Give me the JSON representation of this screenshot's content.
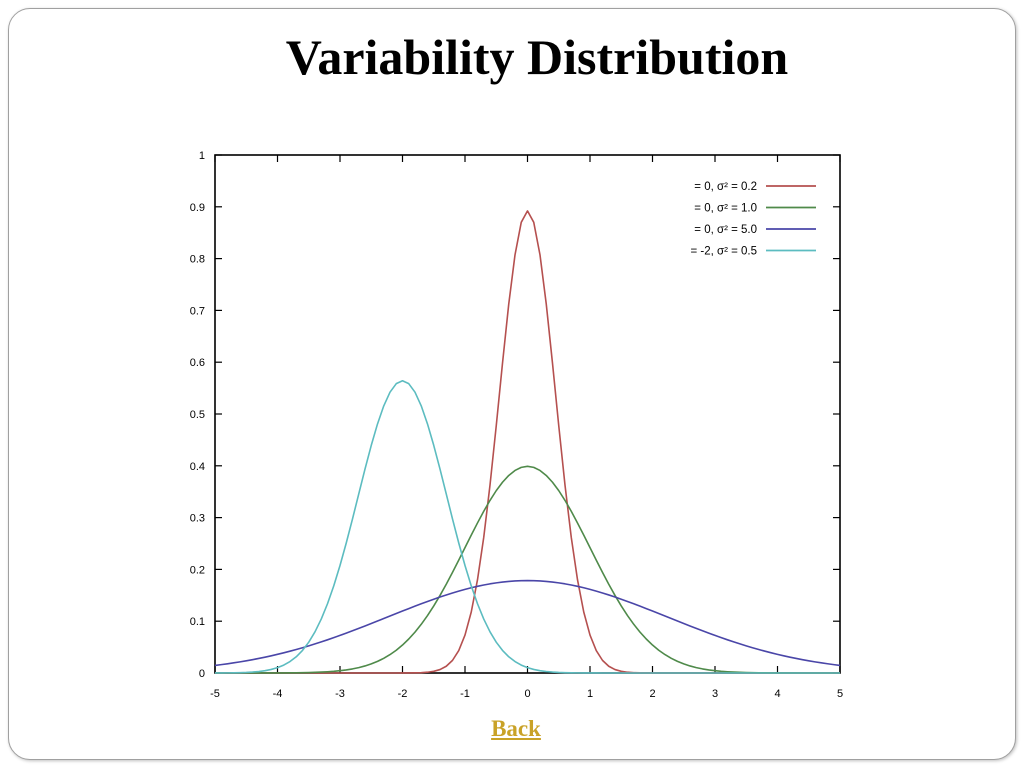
{
  "slide": {
    "title": "Variability Distribution",
    "back_label": "Back"
  },
  "chart_data": {
    "type": "line",
    "title": "",
    "xlabel": "",
    "ylabel": "",
    "xlim": [
      -5,
      5
    ],
    "ylim": [
      0,
      1
    ],
    "x_ticks": [
      "-5",
      "-4",
      "-3",
      "-2",
      "-1",
      "0",
      "1",
      "2",
      "3",
      "4",
      "5"
    ],
    "y_ticks": [
      "0",
      "0.1",
      "0.2",
      "0.3",
      "0.4",
      "0.5",
      "0.6",
      "0.7",
      "0.8",
      "0.9",
      "1"
    ],
    "grid": false,
    "legend_position": "top-right",
    "x_step": 0.1,
    "series": [
      {
        "name": "= 0, σ² = 0.2",
        "mean": 0,
        "variance": 0.2,
        "color": "#b5504f"
      },
      {
        "name": "= 0, σ² = 1.0",
        "mean": 0,
        "variance": 1.0,
        "color": "#4f8a4a"
      },
      {
        "name": "= 0, σ² = 5.0",
        "mean": 0,
        "variance": 5.0,
        "color": "#4a46a8"
      },
      {
        "name": "= -2, σ² = 0.5",
        "mean": -2,
        "variance": 0.5,
        "color": "#5cbcc0"
      }
    ]
  }
}
